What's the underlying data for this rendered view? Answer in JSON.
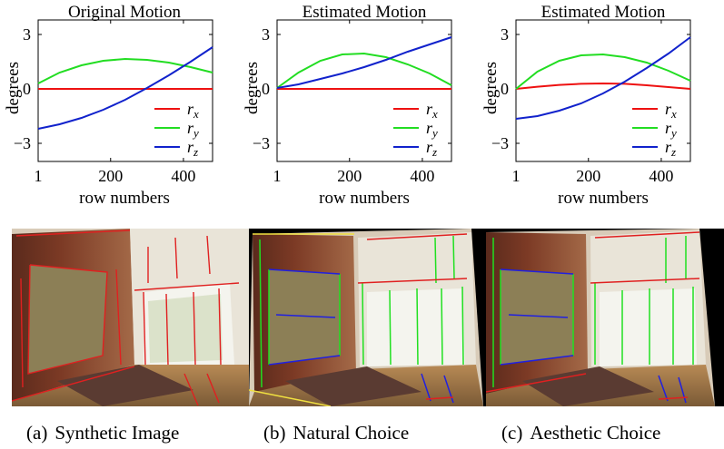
{
  "chart_data": [
    {
      "type": "line",
      "title": "Original Motion",
      "xlabel": "row numbers",
      "ylabel": "degrees",
      "xlim": [
        1,
        480
      ],
      "ylim": [
        -4,
        3.8
      ],
      "xticks": [
        "1",
        "200",
        "400"
      ],
      "yticks": [
        "3",
        "0",
        "−3"
      ],
      "legend": "bottom-right",
      "x": [
        1,
        60,
        120,
        180,
        240,
        300,
        360,
        420,
        480
      ],
      "series": [
        {
          "name": "r_x",
          "color": "#ee1111",
          "values": [
            0,
            0,
            0,
            0,
            0,
            0,
            0,
            0,
            0
          ]
        },
        {
          "name": "r_y",
          "color": "#22dd22",
          "values": [
            0.3,
            0.9,
            1.3,
            1.55,
            1.65,
            1.6,
            1.45,
            1.2,
            0.9
          ]
        },
        {
          "name": "r_z",
          "color": "#1122cc",
          "values": [
            -2.2,
            -1.95,
            -1.6,
            -1.15,
            -0.6,
            0.05,
            0.75,
            1.5,
            2.3
          ]
        }
      ]
    },
    {
      "type": "line",
      "title": "Estimated Motion",
      "xlabel": "row numbers",
      "ylabel": "degrees",
      "xlim": [
        1,
        480
      ],
      "ylim": [
        -4,
        3.8
      ],
      "xticks": [
        "1",
        "200",
        "400"
      ],
      "yticks": [
        "3",
        "0",
        "−3"
      ],
      "legend": "bottom-right",
      "x": [
        1,
        60,
        120,
        180,
        240,
        300,
        360,
        420,
        480
      ],
      "series": [
        {
          "name": "r_x",
          "color": "#ee1111",
          "values": [
            0,
            0,
            0,
            0,
            0,
            0,
            0,
            0,
            0
          ]
        },
        {
          "name": "r_y",
          "color": "#22dd22",
          "values": [
            0.05,
            0.9,
            1.55,
            1.9,
            1.95,
            1.75,
            1.35,
            0.85,
            0.2
          ]
        },
        {
          "name": "r_z",
          "color": "#1122cc",
          "values": [
            0.05,
            0.25,
            0.55,
            0.85,
            1.2,
            1.6,
            2.05,
            2.45,
            2.85
          ]
        }
      ]
    },
    {
      "type": "line",
      "title": "Estimated Motion",
      "xlabel": "row numbers",
      "ylabel": "degrees",
      "xlim": [
        1,
        480
      ],
      "ylim": [
        -4,
        3.8
      ],
      "xticks": [
        "1",
        "200",
        "400"
      ],
      "yticks": [
        "3",
        "0",
        "−3"
      ],
      "legend": "bottom-right",
      "x": [
        1,
        60,
        120,
        180,
        240,
        300,
        360,
        420,
        480
      ],
      "series": [
        {
          "name": "r_x",
          "color": "#ee1111",
          "values": [
            0,
            0.12,
            0.22,
            0.28,
            0.3,
            0.28,
            0.2,
            0.1,
            0.0
          ]
        },
        {
          "name": "r_y",
          "color": "#22dd22",
          "values": [
            0.0,
            0.95,
            1.55,
            1.85,
            1.9,
            1.75,
            1.45,
            1.0,
            0.45
          ]
        },
        {
          "name": "r_z",
          "color": "#1122cc",
          "values": [
            -1.65,
            -1.5,
            -1.2,
            -0.8,
            -0.25,
            0.4,
            1.15,
            1.95,
            2.85
          ]
        }
      ]
    }
  ],
  "legend_labels": {
    "rx_base": "r",
    "rx_sub": "x",
    "ry_base": "r",
    "ry_sub": "y",
    "rz_base": "r",
    "rz_sub": "z"
  },
  "photos": [
    {
      "caption_label": "(a)",
      "caption_text": "Synthetic Image",
      "line_colors": [
        "#e02020"
      ]
    },
    {
      "caption_label": "(b)",
      "caption_text": "Natural Choice",
      "line_colors": [
        "#e02020",
        "#20e020",
        "#2020e0"
      ]
    },
    {
      "caption_label": "(c)",
      "caption_text": "Aesthetic Choice",
      "line_colors": [
        "#e02020",
        "#20e020",
        "#2020e0"
      ]
    }
  ],
  "colors": {
    "rx": "#ee1111",
    "ry": "#22dd22",
    "rz": "#1122cc"
  }
}
